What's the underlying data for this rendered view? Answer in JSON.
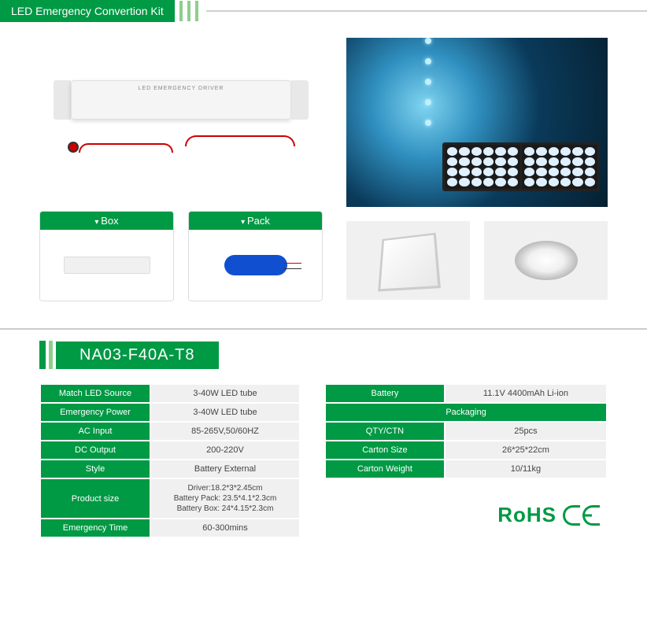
{
  "header": {
    "title": "LED Emergency Convertion Kit"
  },
  "product_image": {
    "driver_label": "LED EMERGENCY DRIVER"
  },
  "cards": {
    "box": {
      "label": "Box"
    },
    "pack": {
      "label": "Pack"
    }
  },
  "model": {
    "code": "NA03-F40A-T8"
  },
  "specs_left": {
    "rows": [
      {
        "label": "Match LED Source",
        "value": "3-40W LED tube"
      },
      {
        "label": "Emergency Power",
        "value": "3-40W LED tube"
      },
      {
        "label": "AC Input",
        "value": "85-265V,50/60HZ"
      },
      {
        "label": "DC  Output",
        "value": "200-220V"
      },
      {
        "label": "Style",
        "value": "Battery External"
      },
      {
        "label": "Product size",
        "value": "Driver:18.2*3*2.45cm\nBattery Pack: 23.5*4.1*2.3cm\nBattery Box: 24*4.15*2.3cm"
      },
      {
        "label": "Emergency Time",
        "value": "60-300mins"
      }
    ]
  },
  "specs_right": {
    "battery_header": "Battery",
    "battery_value": "11.1V 4400mAh Li-ion",
    "packaging_header": "Packaging",
    "rows": [
      {
        "label": "QTY/CTN",
        "value": "25pcs"
      },
      {
        "label": "Carton Size",
        "value": "26*25*22cm"
      },
      {
        "label": "Carton Weight",
        "value": "10/11kg"
      }
    ]
  },
  "certifications": {
    "rohs": "RoHS"
  },
  "colors": {
    "brand_green": "#009944",
    "light_green": "#8dcf8d",
    "grey_bg": "#f0f0f0"
  }
}
